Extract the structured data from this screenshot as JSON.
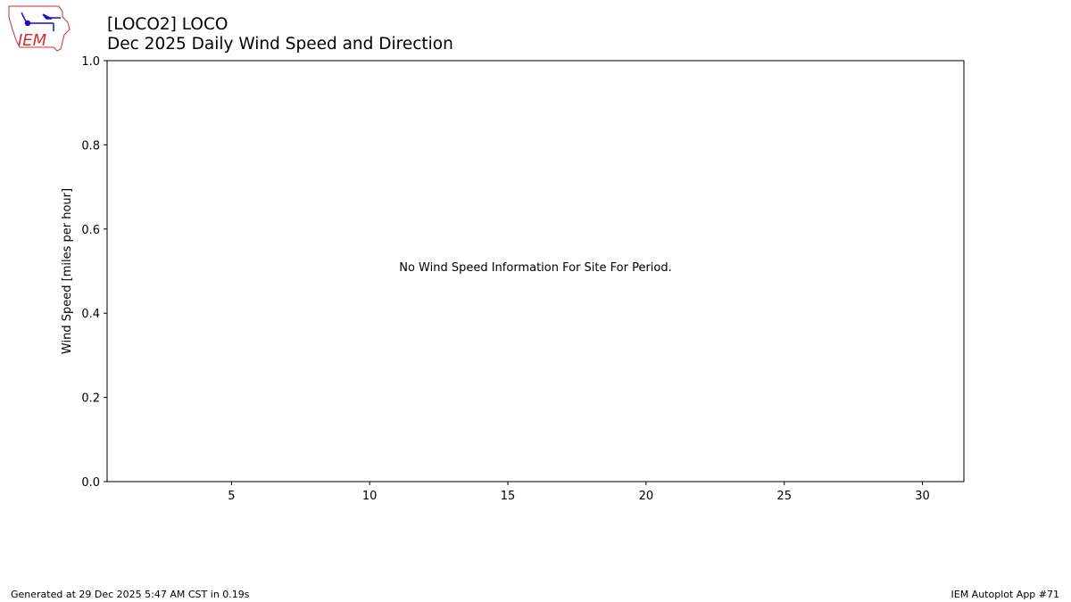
{
  "header": {
    "title_line1": "[LOCO2] LOCO",
    "title_line2": "Dec 2025 Daily Wind Speed and Direction",
    "logo_text": "IEM"
  },
  "footer": {
    "left": "Generated at 29 Dec 2025 5:47 AM CST in 0.19s",
    "right": "IEM Autoplot App #71"
  },
  "colors": {
    "logo_red": "#d03030",
    "logo_blue": "#1010cc"
  },
  "chart_data": {
    "type": "bar",
    "title": "Dec 2025 Daily Wind Speed and Direction",
    "xlabel": "",
    "ylabel": "Wind Speed [miles per hour]",
    "xlim": [
      0.5,
      31.5
    ],
    "ylim": [
      0,
      1
    ],
    "xticks": [
      5,
      10,
      15,
      20,
      25,
      30
    ],
    "yticks": [
      "0.0",
      "0.2",
      "0.4",
      "0.6",
      "0.8",
      "1.0"
    ],
    "grid": false,
    "series": [],
    "annotation": "No Wind Speed Information For Site For Period."
  }
}
